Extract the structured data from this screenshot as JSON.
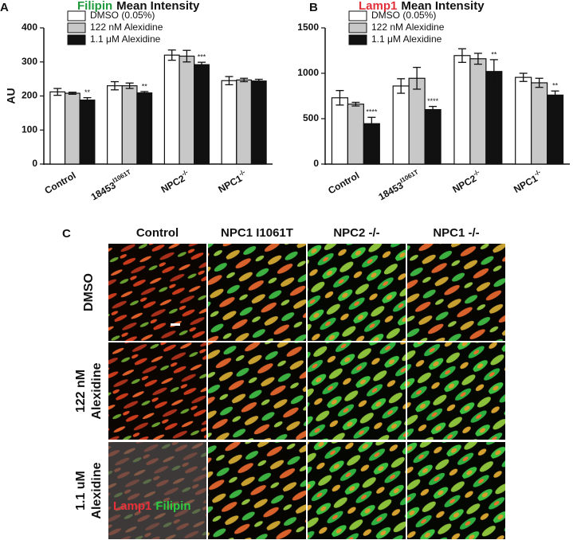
{
  "chart_data": [
    {
      "type": "bar",
      "panel_label": "A",
      "title": {
        "highlight": "Filipin",
        "highlight_color": "#1e9a3c",
        "rest": "Mean Intensity"
      },
      "y_label": "AU",
      "categories": [
        "Control",
        "18453",
        "NPC2",
        "NPC1"
      ],
      "category_superscripts": [
        null,
        "I1061T",
        "-/-",
        "-/-"
      ],
      "series": [
        {
          "name": "DMSO (0.05%)",
          "color": "#ffffff",
          "values": [
            212,
            230,
            320,
            245
          ],
          "errors": [
            10,
            12,
            15,
            12
          ]
        },
        {
          "name": "122 nM Alexidine",
          "color": "#c8c8c8",
          "values": [
            208,
            230,
            317,
            247
          ],
          "errors": [
            3,
            8,
            17,
            5
          ]
        },
        {
          "name": "1.1 μM Alexidine",
          "color": "#111111",
          "values": [
            188,
            209,
            292,
            244
          ],
          "errors": [
            7,
            4,
            7,
            5
          ],
          "stars": [
            "**",
            "**",
            "***",
            null
          ]
        }
      ],
      "ylim": [
        0,
        400
      ],
      "yticks": [
        0,
        100,
        200,
        300,
        400
      ],
      "grid": false
    },
    {
      "type": "bar",
      "panel_label": "B",
      "title": {
        "highlight": "Lamp1",
        "highlight_color": "#e0303a",
        "rest": "Mean Intensity"
      },
      "categories": [
        "Control",
        "18453",
        "NPC2",
        "NPC1"
      ],
      "category_superscripts": [
        null,
        "I1061T",
        "-/-",
        "-/-"
      ],
      "series": [
        {
          "name": "DMSO (0.05%)",
          "color": "#ffffff",
          "values": [
            730,
            860,
            1195,
            955
          ],
          "errors": [
            80,
            80,
            75,
            45
          ]
        },
        {
          "name": "122 nM Alexidine",
          "color": "#c8c8c8",
          "values": [
            660,
            945,
            1160,
            895
          ],
          "errors": [
            20,
            120,
            60,
            50
          ]
        },
        {
          "name": "1.1 μM Alexidine",
          "color": "#111111",
          "values": [
            445,
            600,
            1020,
            760
          ],
          "errors": [
            70,
            35,
            130,
            45
          ],
          "stars": [
            "****",
            "****",
            "**",
            "**"
          ]
        }
      ],
      "ylim": [
        0,
        1500
      ],
      "yticks": [
        0,
        500,
        1000,
        1500
      ],
      "grid": false
    }
  ],
  "panel_c": {
    "label": "C",
    "columns": [
      "Control",
      "NPC1 I1061T",
      "NPC2 -/-",
      "NPC1 -/-"
    ],
    "rows": [
      [
        "DMSO"
      ],
      [
        "122 nM",
        "Alexidine"
      ],
      [
        "1.1 uM",
        "Alexidine"
      ]
    ],
    "stain_labels": [
      {
        "text": "Lamp1",
        "color": "#e8303a"
      },
      {
        "text": "Filipin",
        "color": "#2ecc40"
      }
    ]
  }
}
